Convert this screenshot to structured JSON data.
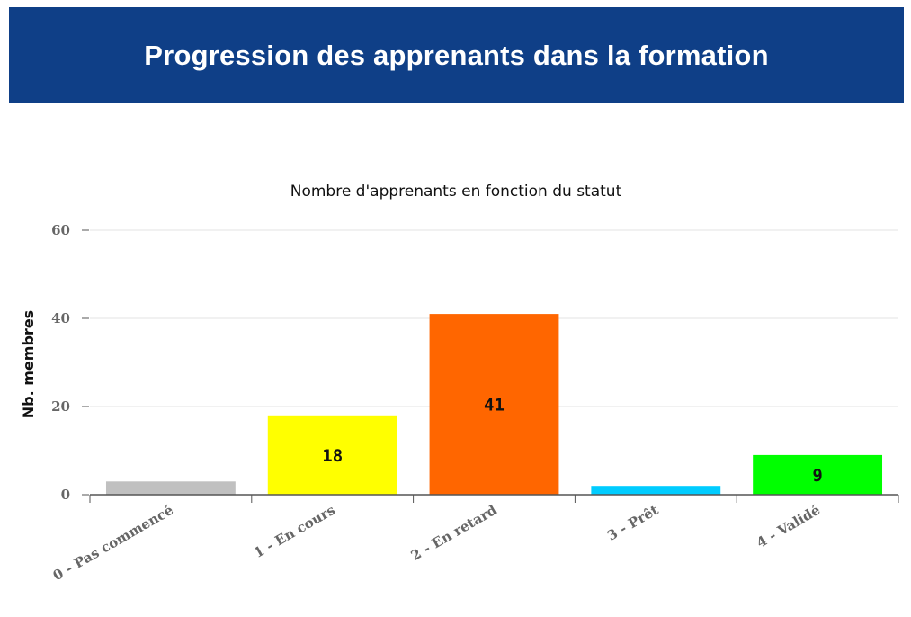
{
  "header": {
    "title": "Progression des apprenants dans la formation",
    "background_color": "#0f3f87"
  },
  "chart_data": {
    "type": "bar",
    "title": "Nombre d'apprenants en fonction du statut",
    "xlabel": "",
    "ylabel": "Nb. membres",
    "ylim": [
      0,
      60
    ],
    "yticks": [
      0,
      20,
      40,
      60
    ],
    "grid": true,
    "categories": [
      "0 - Pas commencé",
      "1 - En cours",
      "2 - En retard",
      "3 - Prêt",
      "4 - Validé"
    ],
    "values": [
      3,
      18,
      41,
      2,
      9
    ],
    "data_labels": [
      "",
      "18",
      "41",
      "",
      "9"
    ],
    "colors": [
      "#c0c0c0",
      "#ffff00",
      "#ff6600",
      "#00ccff",
      "#00ff00"
    ]
  }
}
